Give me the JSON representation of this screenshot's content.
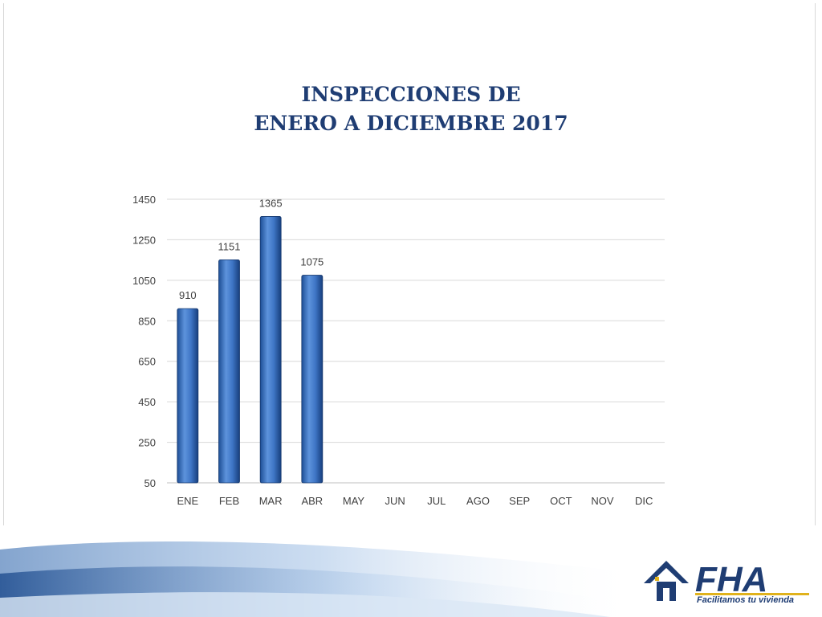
{
  "title": {
    "line1": "INSPECCIONES DE",
    "line2": "ENERO A DICIEMBRE 2017"
  },
  "chart_data": {
    "type": "bar",
    "categories": [
      "ENE",
      "FEB",
      "MAR",
      "ABR",
      "MAY",
      "JUN",
      "JUL",
      "AGO",
      "SEP",
      "OCT",
      "NOV",
      "DIC"
    ],
    "values": [
      910,
      1151,
      1365,
      1075,
      null,
      null,
      null,
      null,
      null,
      null,
      null,
      null
    ],
    "ylim": [
      50,
      1450
    ],
    "yticks": [
      50,
      250,
      450,
      650,
      850,
      1050,
      1250,
      1450
    ],
    "grid": true,
    "bar_color": "#3a6fbf"
  },
  "brand": {
    "logo_text": "FHA",
    "tagline": "Facilitamos tu vivienda",
    "color": "#1f3d73",
    "accent": "#e0b21c"
  }
}
